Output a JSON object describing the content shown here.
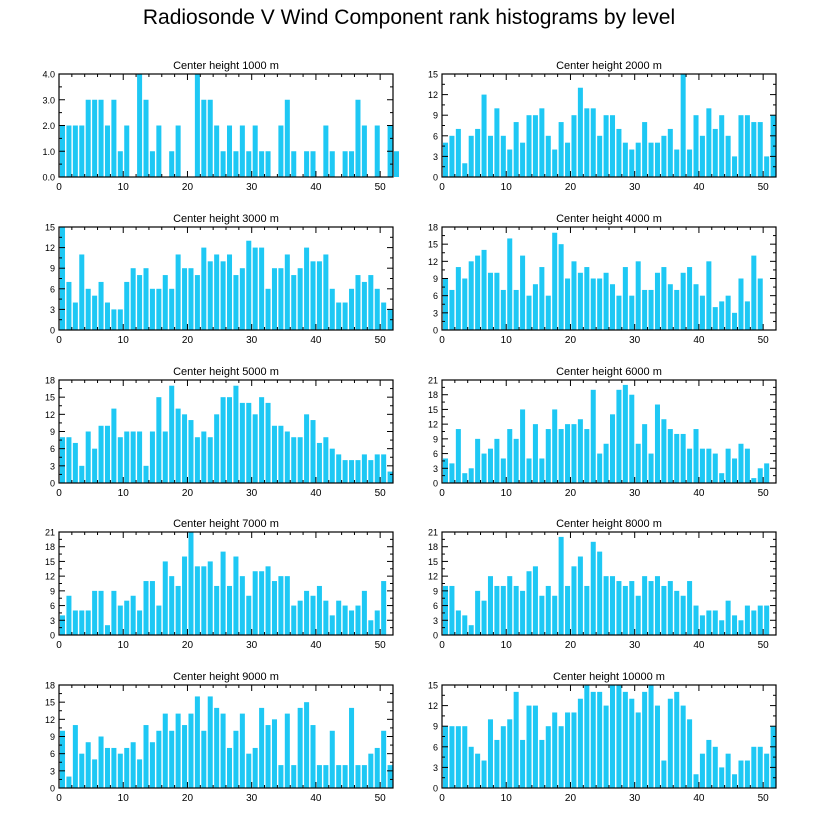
{
  "title": "Radiosonde V Wind Component rank histograms by level",
  "colors": {
    "bar": "#1ec8f4",
    "axis": "#000000"
  },
  "chart_data": [
    {
      "type": "bar",
      "title": "Center height 1000 m",
      "ylim": [
        0,
        4
      ],
      "yticks": [
        0,
        1,
        2,
        3,
        4
      ],
      "ytick_labels": [
        "0.0",
        "1.0",
        "2.0",
        "3.0",
        "4.0"
      ],
      "xlim": [
        0,
        52
      ],
      "xticks": [
        0,
        10,
        20,
        30,
        40,
        50
      ],
      "values": [
        2,
        2,
        2,
        2,
        3,
        3,
        3,
        2,
        3,
        1,
        2,
        0,
        4,
        3,
        1,
        2,
        0,
        1,
        2,
        0,
        0,
        4,
        3,
        3,
        2,
        1,
        2,
        1,
        2,
        1,
        2,
        1,
        1,
        0,
        2,
        3,
        1,
        0,
        1,
        1,
        0,
        2,
        1,
        0,
        1,
        1,
        3,
        2,
        0,
        2,
        0,
        2,
        1
      ]
    },
    {
      "type": "bar",
      "title": "Center height 2000 m",
      "ylim": [
        0,
        15
      ],
      "yticks": [
        0,
        3,
        6,
        9,
        12,
        15
      ],
      "ytick_labels": [
        "0",
        "3",
        "6",
        "9",
        "12",
        "15"
      ],
      "xlim": [
        0,
        52
      ],
      "xticks": [
        0,
        10,
        20,
        30,
        40,
        50
      ],
      "values": [
        5,
        6,
        7,
        2,
        6,
        7,
        12,
        6,
        10,
        6,
        4,
        8,
        5,
        9,
        9,
        10,
        6,
        4,
        8,
        5,
        9,
        13,
        10,
        10,
        6,
        9,
        9,
        7,
        5,
        4,
        5,
        8,
        5,
        5,
        6,
        7,
        4,
        15,
        4,
        9,
        6,
        10,
        7,
        9,
        6,
        3,
        9,
        9,
        8,
        8,
        3,
        9
      ]
    },
    {
      "type": "bar",
      "title": "Center height 3000 m",
      "ylim": [
        0,
        15
      ],
      "yticks": [
        0,
        3,
        6,
        9,
        12,
        15
      ],
      "ytick_labels": [
        "0",
        "3",
        "6",
        "9",
        "12",
        "15"
      ],
      "xlim": [
        0,
        52
      ],
      "xticks": [
        0,
        10,
        20,
        30,
        40,
        50
      ],
      "values": [
        15,
        7,
        4,
        11,
        6,
        5,
        7,
        4,
        3,
        3,
        7,
        9,
        8,
        9,
        6,
        6,
        8,
        6,
        11,
        9,
        9,
        8,
        12,
        10,
        11,
        10,
        11,
        8,
        9,
        13,
        12,
        12,
        6,
        9,
        9,
        11,
        8,
        9,
        12,
        10,
        10,
        11,
        6,
        4,
        4,
        6,
        8,
        7,
        8,
        6,
        4,
        3
      ]
    },
    {
      "type": "bar",
      "title": "Center height 4000 m",
      "ylim": [
        0,
        18
      ],
      "yticks": [
        0,
        3,
        6,
        9,
        12,
        15,
        18
      ],
      "ytick_labels": [
        "0",
        "3",
        "6",
        "9",
        "12",
        "15",
        "18"
      ],
      "xlim": [
        0,
        52
      ],
      "xticks": [
        0,
        10,
        20,
        30,
        40,
        50
      ],
      "values": [
        9,
        7,
        11,
        9,
        12,
        13,
        14,
        10,
        10,
        7,
        16,
        7,
        13,
        6,
        8,
        11,
        6,
        17,
        15,
        9,
        12,
        10,
        11,
        9,
        9,
        10,
        8,
        6,
        11,
        6,
        12,
        7,
        7,
        10,
        11,
        8,
        7,
        10,
        11,
        8,
        6,
        12,
        4,
        5,
        6,
        3,
        9,
        5,
        13,
        9
      ]
    },
    {
      "type": "bar",
      "title": "Center height 5000 m",
      "ylim": [
        0,
        18
      ],
      "yticks": [
        0,
        3,
        6,
        9,
        12,
        15,
        18
      ],
      "ytick_labels": [
        "0",
        "3",
        "6",
        "9",
        "12",
        "15",
        "18"
      ],
      "xlim": [
        0,
        52
      ],
      "xticks": [
        0,
        10,
        20,
        30,
        40,
        50
      ],
      "values": [
        8,
        8,
        7,
        3,
        9,
        6,
        10,
        10,
        13,
        8,
        9,
        9,
        9,
        3,
        9,
        15,
        9,
        17,
        13,
        12,
        11,
        8,
        9,
        8,
        12,
        15,
        15,
        17,
        14,
        14,
        12,
        15,
        14,
        10,
        10,
        9,
        8,
        8,
        12,
        11,
        7,
        8,
        6,
        5,
        4,
        4,
        4,
        5,
        4,
        5,
        5,
        2
      ]
    },
    {
      "type": "bar",
      "title": "Center height 6000 m",
      "ylim": [
        0,
        21
      ],
      "yticks": [
        0,
        3,
        6,
        9,
        12,
        15,
        18,
        21
      ],
      "ytick_labels": [
        "0",
        "3",
        "6",
        "9",
        "12",
        "15",
        "18",
        "21"
      ],
      "xlim": [
        0,
        52
      ],
      "xticks": [
        0,
        10,
        20,
        30,
        40,
        50
      ],
      "values": [
        5,
        4,
        11,
        2,
        3,
        9,
        6,
        7,
        9,
        5,
        11,
        9,
        15,
        5,
        12,
        5,
        11,
        15,
        11,
        12,
        12,
        13,
        11,
        19,
        6,
        8,
        14,
        19,
        20,
        18,
        8,
        12,
        6,
        16,
        13,
        11,
        10,
        10,
        7,
        11,
        7,
        7,
        6,
        2,
        7,
        5,
        8,
        7,
        1,
        3,
        4
      ]
    },
    {
      "type": "bar",
      "title": "Center height 7000 m",
      "ylim": [
        0,
        21
      ],
      "yticks": [
        0,
        3,
        6,
        9,
        12,
        15,
        18,
        21
      ],
      "ytick_labels": [
        "0",
        "3",
        "6",
        "9",
        "12",
        "15",
        "18",
        "21"
      ],
      "xlim": [
        0,
        52
      ],
      "xticks": [
        0,
        10,
        20,
        30,
        40,
        50
      ],
      "values": [
        4,
        8,
        5,
        5,
        5,
        9,
        9,
        2,
        9,
        6,
        7,
        8,
        5,
        11,
        11,
        6,
        15,
        12,
        10,
        16,
        21,
        14,
        14,
        15,
        10,
        17,
        10,
        16,
        12,
        8,
        13,
        13,
        14,
        11,
        12,
        12,
        6,
        7,
        9,
        8,
        10,
        7,
        4,
        7,
        6,
        5,
        6,
        9,
        3,
        5,
        11
      ]
    },
    {
      "type": "bar",
      "title": "Center height 8000 m",
      "ylim": [
        0,
        21
      ],
      "yticks": [
        0,
        3,
        6,
        9,
        12,
        15,
        18,
        21
      ],
      "ytick_labels": [
        "0",
        "3",
        "6",
        "9",
        "12",
        "15",
        "18",
        "21"
      ],
      "xlim": [
        0,
        52
      ],
      "xticks": [
        0,
        10,
        20,
        30,
        40,
        50
      ],
      "values": [
        10,
        10,
        5,
        4,
        2,
        9,
        7,
        12,
        10,
        10,
        12,
        10,
        9,
        13,
        14,
        8,
        10,
        8,
        20,
        10,
        14,
        16,
        10,
        19,
        17,
        12,
        12,
        11,
        10,
        11,
        8,
        12,
        11,
        12,
        10,
        11,
        9,
        8,
        11,
        6,
        4,
        5,
        5,
        3,
        7,
        4,
        3,
        6,
        5,
        6,
        6
      ]
    },
    {
      "type": "bar",
      "title": "Center height 9000 m",
      "ylim": [
        0,
        18
      ],
      "yticks": [
        0,
        3,
        6,
        9,
        12,
        15,
        18
      ],
      "ytick_labels": [
        "0",
        "3",
        "6",
        "9",
        "12",
        "15",
        "18"
      ],
      "xlim": [
        0,
        52
      ],
      "xticks": [
        0,
        10,
        20,
        30,
        40,
        50
      ],
      "values": [
        10,
        2,
        11,
        6,
        8,
        5,
        9,
        7,
        7,
        6,
        7,
        8,
        5,
        11,
        8,
        10,
        13,
        10,
        13,
        11,
        13,
        16,
        10,
        16,
        14,
        13,
        7,
        10,
        13,
        6,
        7,
        14,
        11,
        12,
        4,
        13,
        4,
        14,
        15,
        11,
        4,
        4,
        10,
        4,
        4,
        14,
        4,
        4,
        6,
        7,
        10,
        4
      ]
    },
    {
      "type": "bar",
      "title": "Center height 10000 m",
      "ylim": [
        0,
        15
      ],
      "yticks": [
        0,
        3,
        6,
        9,
        12,
        15
      ],
      "ytick_labels": [
        "0",
        "3",
        "6",
        "9",
        "12",
        "15"
      ],
      "xlim": [
        0,
        52
      ],
      "xticks": [
        0,
        10,
        20,
        30,
        40,
        50
      ],
      "values": [
        9,
        9,
        9,
        9,
        6,
        5,
        4,
        10,
        7,
        9,
        10,
        14,
        7,
        12,
        12,
        7,
        9,
        11,
        9,
        11,
        11,
        13,
        15,
        14,
        14,
        12,
        15,
        15,
        14,
        13,
        11,
        14,
        15,
        12,
        4,
        13,
        14,
        12,
        10,
        2,
        5,
        7,
        6,
        3,
        5,
        2,
        4,
        4,
        6,
        6,
        5,
        9
      ]
    }
  ]
}
